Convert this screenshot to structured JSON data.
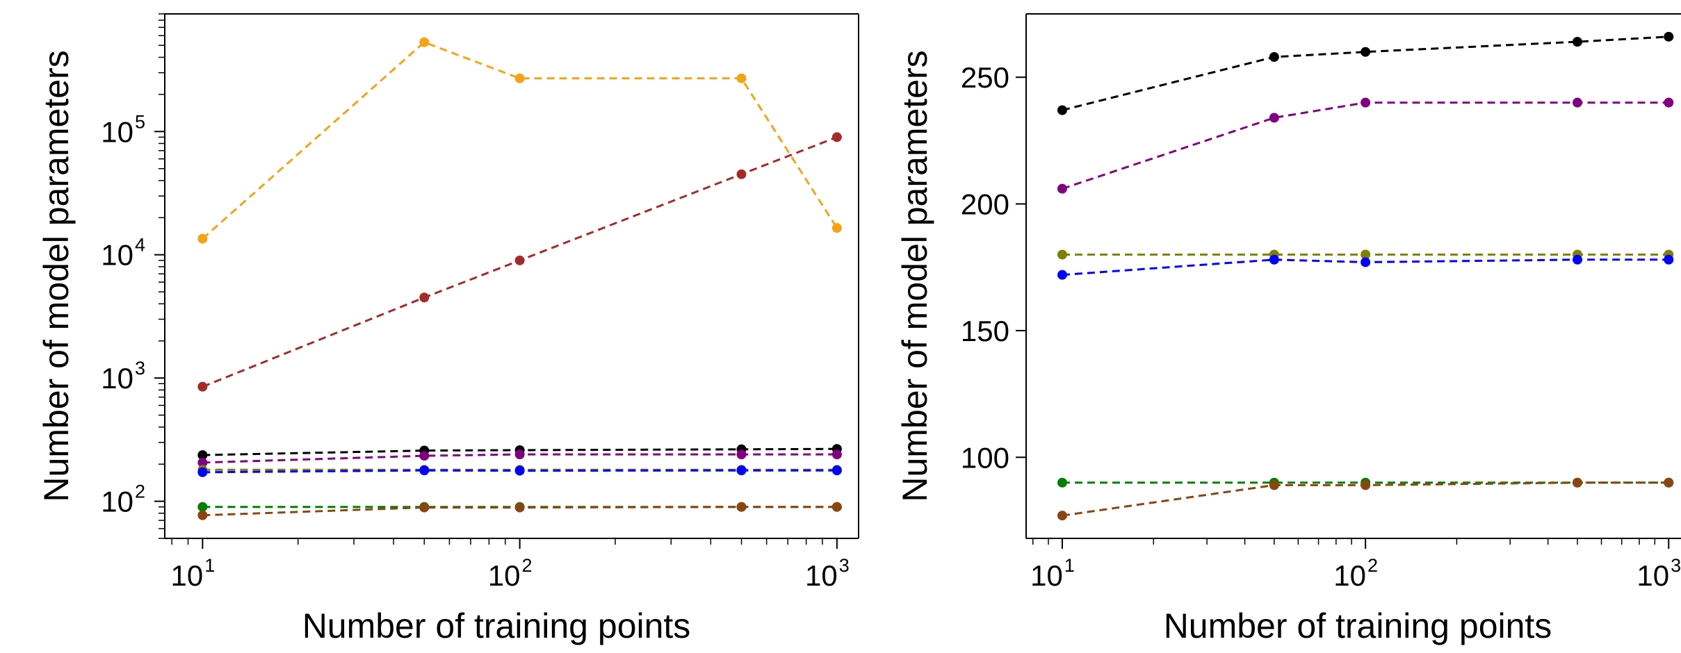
{
  "colors": {
    "series": [
      "#f5a316",
      "#a52a2a",
      "#000000",
      "#800080",
      "#808000",
      "#0000ff",
      "#008000",
      "#8b4513"
    ]
  },
  "chart_data": [
    {
      "type": "line",
      "xscale": "log",
      "yscale": "log",
      "xlabel": "Number of training points",
      "ylabel": "Number of model parameters",
      "xlim": [
        7.6,
        1170
      ],
      "ylim": [
        50,
        900000
      ],
      "xticks": [
        {
          "base": "10",
          "exp": "1",
          "value": 10
        },
        {
          "base": "10",
          "exp": "2",
          "value": 100
        },
        {
          "base": "10",
          "exp": "3",
          "value": 1000
        }
      ],
      "yticks": [
        {
          "base": "10",
          "exp": "2",
          "value": 100
        },
        {
          "base": "10",
          "exp": "3",
          "value": 1000
        },
        {
          "base": "10",
          "exp": "4",
          "value": 10000
        },
        {
          "base": "10",
          "exp": "5",
          "value": 100000
        }
      ],
      "grid": false,
      "line_style": "dashed",
      "marker": "circle",
      "x": [
        10,
        50,
        100,
        500,
        1000
      ],
      "series": [
        {
          "color": "#f5a316",
          "values": [
            13500,
            530000,
            270000,
            270000,
            16500
          ]
        },
        {
          "color": "#a52a2a",
          "values": [
            850,
            4500,
            9000,
            45000,
            90000
          ]
        },
        {
          "color": "#000000",
          "values": [
            237,
            258,
            260,
            264,
            266
          ]
        },
        {
          "color": "#800080",
          "values": [
            206,
            234,
            240,
            240,
            240
          ]
        },
        {
          "color": "#808000",
          "values": [
            180,
            180,
            180,
            180,
            180
          ]
        },
        {
          "color": "#0000ff",
          "values": [
            172,
            178,
            177,
            178,
            178
          ]
        },
        {
          "color": "#008000",
          "values": [
            90,
            90,
            90,
            90,
            90
          ]
        },
        {
          "color": "#8b4513",
          "values": [
            77,
            89,
            89,
            90,
            90
          ]
        }
      ]
    },
    {
      "type": "line",
      "xscale": "log",
      "yscale": "linear",
      "xlabel": "Number of training points",
      "ylabel": "Number of model parameters",
      "xlim": [
        7.6,
        1170
      ],
      "ylim": [
        68,
        275
      ],
      "xticks": [
        {
          "base": "10",
          "exp": "1",
          "value": 10
        },
        {
          "base": "10",
          "exp": "2",
          "value": 100
        },
        {
          "base": "10",
          "exp": "3",
          "value": 1000
        }
      ],
      "yticks": [
        {
          "label": "100",
          "value": 100
        },
        {
          "label": "150",
          "value": 150
        },
        {
          "label": "200",
          "value": 200
        },
        {
          "label": "250",
          "value": 250
        }
      ],
      "grid": false,
      "line_style": "dashed",
      "marker": "circle",
      "x": [
        10,
        50,
        100,
        500,
        1000
      ],
      "series": [
        {
          "color": "#000000",
          "values": [
            237,
            258,
            260,
            264,
            266
          ]
        },
        {
          "color": "#800080",
          "values": [
            206,
            234,
            240,
            240,
            240
          ]
        },
        {
          "color": "#808000",
          "values": [
            180,
            180,
            180,
            180,
            180
          ]
        },
        {
          "color": "#0000ff",
          "values": [
            172,
            178,
            177,
            178,
            178
          ]
        },
        {
          "color": "#008000",
          "values": [
            90,
            90,
            90,
            90,
            90
          ]
        },
        {
          "color": "#8b4513",
          "values": [
            77,
            89,
            89,
            90,
            90
          ]
        }
      ]
    }
  ]
}
